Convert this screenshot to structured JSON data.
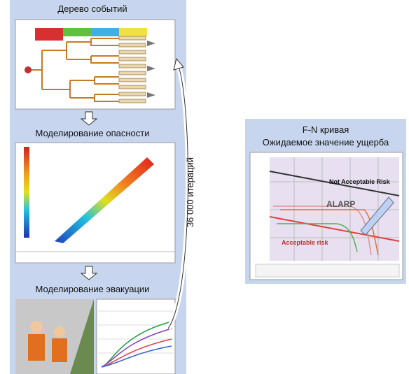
{
  "left_panel": {
    "steps": [
      {
        "title": "Дерево событий"
      },
      {
        "title": "Моделирование опасности"
      },
      {
        "title": "Моделирование эвакуации"
      }
    ],
    "loop_label": "36 000 итераций"
  },
  "right_panel": {
    "title": "F-N кривая",
    "subtitle": "Ожидаемое значение ущерба",
    "chart_labels": [
      "Not Acceptable Risk",
      "ALARP",
      "Acceptable risk"
    ]
  }
}
